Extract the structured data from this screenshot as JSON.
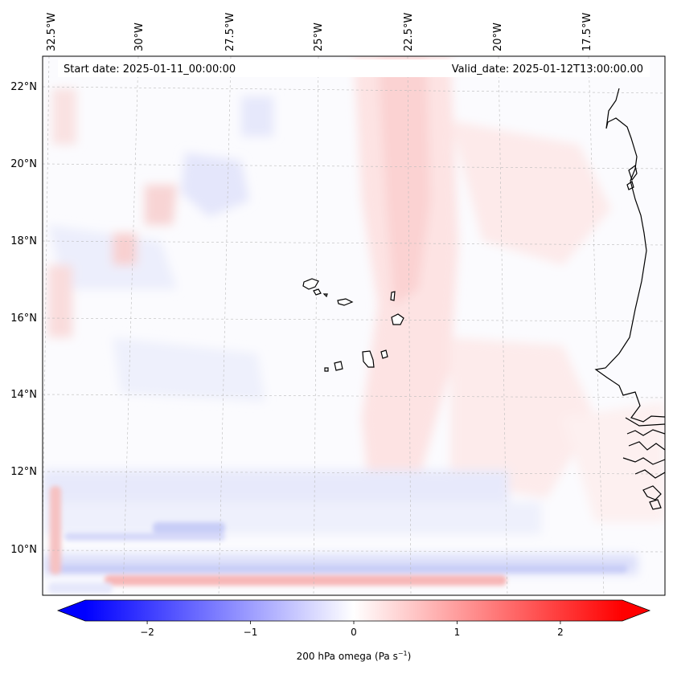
{
  "map": {
    "start_label": "Start date: 2025-01-11_00:00:00",
    "valid_label": "Valid_date: 2025-01-12T13:00:00.00",
    "lon_labels": [
      "32.5°W",
      "30°W",
      "27.5°W",
      "25°W",
      "22.5°W",
      "20°W",
      "17.5°W"
    ],
    "lat_labels": [
      "22°N",
      "20°N",
      "18°N",
      "16°N",
      "14°N",
      "12°N",
      "10°N"
    ],
    "islands": "Cape Verde islands",
    "coastline": "West African coast (Mauritania, Senegal, Gambia, Guinea-Bissau)"
  },
  "colorbar": {
    "label_main": "200 hPa omega (Pa s",
    "label_exp": "−1",
    "label_close": ")",
    "min": -2.6,
    "max": 2.6,
    "ticks": [
      "−2",
      "−1",
      "0",
      "1",
      "2"
    ],
    "tick_values": [
      -2,
      -1,
      0,
      1,
      2
    ],
    "colors": {
      "negative": "#0000ff",
      "zero": "#ffffff",
      "positive": "#ff0000"
    }
  }
}
